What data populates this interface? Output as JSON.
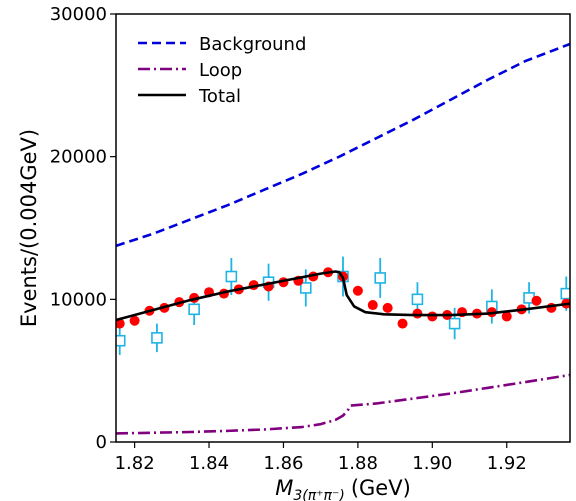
{
  "chart_data": {
    "type": "line",
    "title": "",
    "xlabel_main": "M",
    "xlabel_sub": "3(π⁺π⁻)",
    "xlabel_unit": "(GeV)",
    "ylabel": "Events/(0.004GeV)",
    "xlim": [
      1.815,
      1.937
    ],
    "ylim": [
      0,
      30000
    ],
    "x_ticks": [
      1.82,
      1.84,
      1.86,
      1.88,
      1.9,
      1.92
    ],
    "x_tick_labels": [
      "1.82",
      "1.84",
      "1.86",
      "1.88",
      "1.90",
      "1.92"
    ],
    "y_ticks": [
      0,
      10000,
      20000,
      30000
    ],
    "y_tick_labels": [
      "0",
      "10000",
      "20000",
      "30000"
    ],
    "grid": false,
    "legend_placement": "top-left",
    "series": [
      {
        "name": "Background",
        "style": "dashed",
        "color": "#0000dd",
        "x": [
          1.815,
          1.825,
          1.835,
          1.845,
          1.855,
          1.865,
          1.875,
          1.885,
          1.895,
          1.905,
          1.915,
          1.925,
          1.937
        ],
        "y": [
          13750,
          14600,
          15600,
          16600,
          17700,
          18800,
          20000,
          21300,
          22600,
          24000,
          25400,
          26700,
          27900
        ]
      },
      {
        "name": "Loop",
        "style": "dashdot",
        "color": "#800080",
        "x": [
          1.815,
          1.825,
          1.835,
          1.845,
          1.855,
          1.865,
          1.87,
          1.874,
          1.876,
          1.8775,
          1.878,
          1.885,
          1.895,
          1.905,
          1.915,
          1.925,
          1.937
        ],
        "y": [
          600,
          650,
          700,
          780,
          880,
          1050,
          1250,
          1550,
          1850,
          2300,
          2550,
          2700,
          3050,
          3400,
          3800,
          4200,
          4700
        ]
      },
      {
        "name": "Total",
        "style": "solid",
        "color": "#000000",
        "x": [
          1.815,
          1.825,
          1.835,
          1.845,
          1.855,
          1.865,
          1.87,
          1.874,
          1.875,
          1.876,
          1.877,
          1.879,
          1.882,
          1.887,
          1.895,
          1.905,
          1.915,
          1.925,
          1.937
        ],
        "y": [
          8550,
          9250,
          9950,
          10550,
          11050,
          11550,
          11800,
          11950,
          11900,
          11500,
          10300,
          9500,
          9100,
          8950,
          8900,
          8900,
          9000,
          9300,
          9700
        ]
      }
    ],
    "markers": [
      {
        "type": "filled-circle",
        "color": "#ff0000",
        "x": [
          1.816,
          1.82,
          1.824,
          1.828,
          1.832,
          1.836,
          1.84,
          1.844,
          1.848,
          1.852,
          1.856,
          1.86,
          1.864,
          1.868,
          1.872,
          1.876,
          1.88,
          1.884,
          1.888,
          1.892,
          1.896,
          1.9,
          1.904,
          1.908,
          1.912,
          1.916,
          1.92,
          1.924,
          1.928,
          1.932,
          1.936
        ],
        "y": [
          8300,
          8500,
          9200,
          9400,
          9800,
          10100,
          10500,
          10400,
          10700,
          11000,
          10900,
          11200,
          11300,
          11600,
          11900,
          11600,
          10600,
          9600,
          9400,
          8300,
          9000,
          8800,
          8900,
          9100,
          9000,
          9100,
          8800,
          9300,
          9900,
          9400,
          9700
        ]
      },
      {
        "type": "open-square-errorbar",
        "color": "#1eb4e6",
        "x": [
          1.816,
          1.826,
          1.836,
          1.846,
          1.856,
          1.866,
          1.876,
          1.886,
          1.896,
          1.906,
          1.916,
          1.926,
          1.936
        ],
        "y": [
          7100,
          7300,
          9300,
          11600,
          11200,
          10800,
          11600,
          11500,
          10000,
          8300,
          9500,
          10100,
          10400
        ],
        "yerr": [
          1000,
          1000,
          1100,
          1300,
          1300,
          1300,
          1400,
          1400,
          1200,
          1100,
          1200,
          1100,
          1200
        ]
      }
    ]
  }
}
